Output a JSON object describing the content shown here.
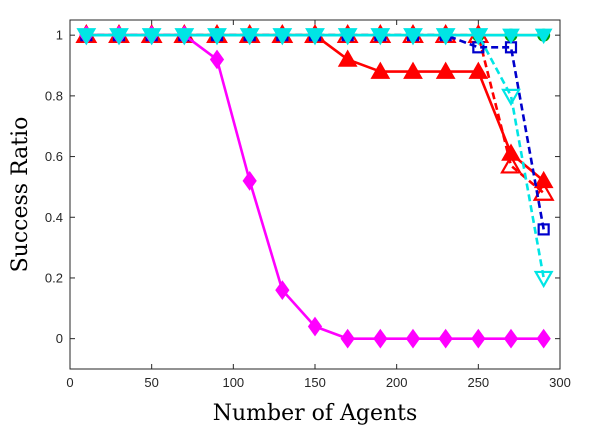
{
  "chart_data": {
    "type": "line",
    "xlabel": "Number of Agents",
    "ylabel": "Success Ratio",
    "xlim": [
      0,
      300
    ],
    "ylim": [
      -0.1,
      1.05
    ],
    "xticks": [
      0,
      50,
      100,
      150,
      200,
      250,
      300
    ],
    "yticks": [
      0,
      0.2,
      0.4,
      0.6,
      0.8,
      1
    ],
    "ytick_labels": [
      "0",
      "0.2",
      "0.4",
      "0.6",
      "0.8",
      "1"
    ],
    "grid": false,
    "x": [
      10,
      30,
      50,
      70,
      90,
      110,
      130,
      150,
      170,
      190,
      210,
      230,
      250,
      270,
      290
    ],
    "series": [
      {
        "color": "#00a000",
        "line": "solid",
        "marker": "circle-filled",
        "values": [
          1,
          1,
          1,
          1,
          1,
          1,
          1,
          1,
          1,
          1,
          1,
          1,
          1,
          1,
          1
        ]
      },
      {
        "color": "#ff0000",
        "line": "dashed",
        "marker": "triangle-up-open",
        "values": [
          1,
          1,
          1,
          1,
          1,
          1,
          1,
          1,
          1,
          1,
          1,
          1,
          1,
          0.57,
          0.48
        ]
      },
      {
        "color": "#ff0000",
        "line": "solid",
        "marker": "triangle-up-filled",
        "values": [
          1,
          1,
          1,
          1,
          1,
          1,
          1,
          1,
          0.92,
          0.88,
          0.88,
          0.88,
          0.88,
          0.61,
          0.52
        ]
      },
      {
        "color": "#0000cc",
        "line": "dashed",
        "marker": "square-open",
        "values": [
          1,
          1,
          1,
          1,
          1,
          1,
          1,
          1,
          1,
          1,
          1,
          1,
          0.96,
          0.96,
          0.36
        ]
      },
      {
        "color": "#ff00ff",
        "line": "solid",
        "marker": "diamond-filled",
        "values": [
          1,
          1,
          1,
          1,
          0.92,
          0.52,
          0.16,
          0.04,
          0,
          0,
          0,
          0,
          0,
          0,
          0
        ]
      },
      {
        "color": "#00e5e5",
        "line": "dashed",
        "marker": "triangle-down-open",
        "values": [
          1,
          1,
          1,
          1,
          1,
          1,
          1,
          1,
          1,
          1,
          1,
          1,
          1,
          0.8,
          0.2
        ]
      },
      {
        "color": "#00e5e5",
        "line": "solid",
        "marker": "triangle-down-filled",
        "values": [
          1,
          1,
          1,
          1,
          1,
          1,
          1,
          1,
          1,
          1,
          1,
          1,
          1,
          1,
          1
        ]
      }
    ]
  }
}
